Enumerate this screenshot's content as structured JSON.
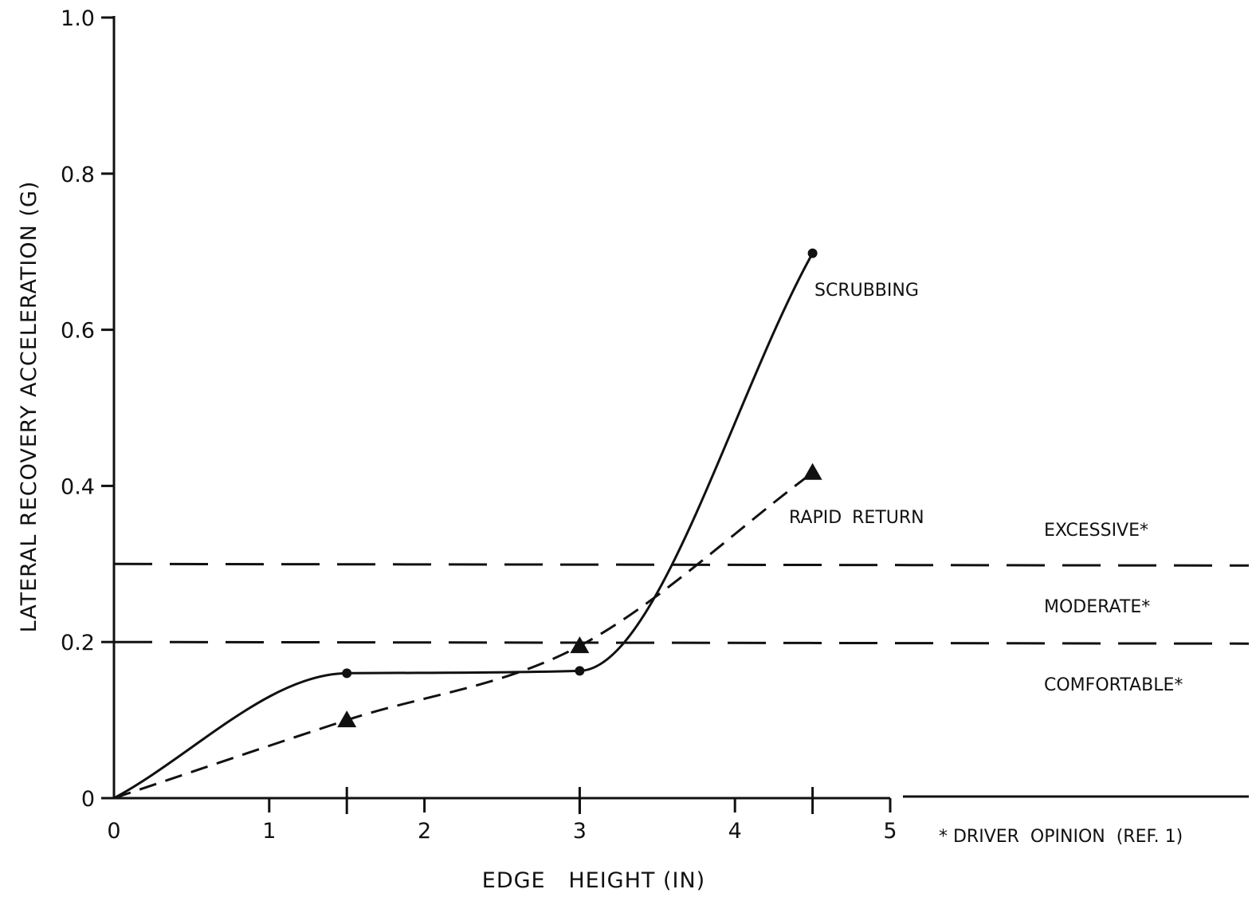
{
  "chart_data": {
    "type": "line",
    "title": "",
    "xlabel": "EDGE   HEIGHT (IN)",
    "ylabel": "LATERAL RECOVERY ACCELERATION (G)",
    "xlim": [
      0,
      5
    ],
    "ylim": [
      0,
      1.0
    ],
    "x_ticks": [
      "0",
      "1",
      "2",
      "3",
      "4",
      "5"
    ],
    "y_ticks": [
      "0",
      "0.2",
      "0.4",
      "0.6",
      "0.8",
      "1.0"
    ],
    "x_major_ticks": [
      1.5,
      3,
      4.5
    ],
    "grid": false,
    "series": [
      {
        "name": "SCRUBBING",
        "line_style": "solid",
        "marker": "circle",
        "x": [
          0,
          1.5,
          3,
          4.5
        ],
        "y": [
          0,
          0.16,
          0.163,
          0.698
        ]
      },
      {
        "name": "RAPID RETURN",
        "line_style": "dashed",
        "marker": "triangle",
        "x": [
          0,
          1.5,
          3,
          4.5
        ],
        "y": [
          0,
          0.1,
          0.195,
          0.417
        ]
      }
    ],
    "reference_lines": [
      {
        "y": 0.3,
        "style": "dashed"
      },
      {
        "y": 0.2,
        "style": "dashed"
      }
    ],
    "zone_labels": [
      "EXCESSIVE*",
      "MODERATE*",
      "COMFORTABLE*"
    ],
    "footnote": "* DRIVER  OPINION  (REF. 1)"
  }
}
